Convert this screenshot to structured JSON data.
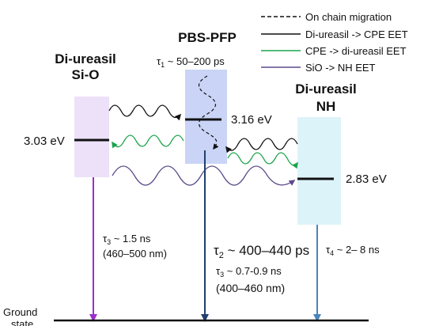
{
  "legend": {
    "on_chain": "On chain migration",
    "ureasil_cpe": "Di-ureasil -> CPE EET",
    "cpe_ureasil": "CPE -> di-ureasil EET",
    "sio_nh": "SiO -> NH EET"
  },
  "species": {
    "left_line1": "Di-ureasil",
    "left_line2": "Si-O",
    "middle": "PBS-PFP",
    "right_line1": "Di-ureasil",
    "right_line2": "NH"
  },
  "energies": {
    "left": "3.03 eV",
    "middle": "3.16 eV",
    "right": "2.83 eV"
  },
  "lifetimes": {
    "tau1_symbol": "τ",
    "tau1_sub": "1",
    "tau1_value": " ~ 50–200 ps",
    "tau3_left_symbol": "τ",
    "tau3_left_sub": "3",
    "tau3_left_value": " ~ 1.5 ns",
    "tau3_left_range": "(460–500 nm)",
    "tau2_symbol": "τ",
    "tau2_sub": "2",
    "tau2_value": " ~ 400–440 ps",
    "tau3_mid_symbol": "τ",
    "tau3_mid_sub": "3",
    "tau3_mid_value": " ~ 0.7-0.9 ns",
    "tau3_mid_range": "(400–460 nm)",
    "tau4_symbol": "τ",
    "tau4_sub": "4",
    "tau4_value": " ~ 2– 8 ns"
  },
  "ground": {
    "line1": "Ground",
    "line2": "state"
  },
  "colors": {
    "left_box": "#ede1f9",
    "middle_box": "#c9d4f6",
    "right_box": "#ddf3fa",
    "green": "#1aa34a",
    "purple": "#5c4a8a",
    "violet_arrow": "#9b2fc9",
    "navy_arrow": "#21406e",
    "steel_arrow": "#4b85b8"
  }
}
